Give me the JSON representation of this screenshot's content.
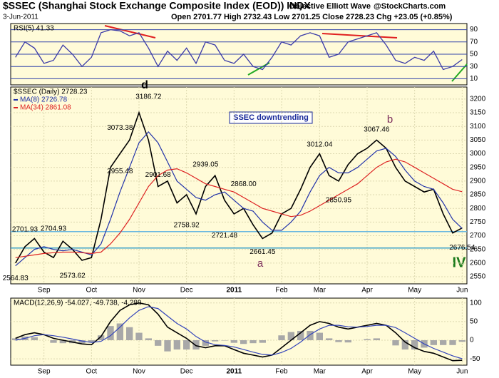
{
  "header": {
    "symbol": "$SSEC (Shanghai Stock Exchange Composite Index (EOD)) INDX",
    "date": "3-Jun-2011",
    "quote": "Open 2701.77  High 2732.43  Low 2701.25  Close 2728.23  Chg +23.05 (+0.85%)",
    "brand": "Objective Elliott Wave",
    "source": "@StockCharts.com",
    "note": "SSEC downtrending",
    "wave_d": "d",
    "wave_a": "a",
    "wave_b": "b",
    "wave_iv": "IV"
  },
  "chart_data": [
    {
      "type": "line",
      "name": "RSI(5) 41.33",
      "ylim": [
        0,
        100
      ],
      "yticks": [
        10,
        30,
        50,
        70,
        90
      ],
      "color": "#3a3aa8",
      "values": [
        45,
        70,
        60,
        35,
        40,
        65,
        50,
        30,
        45,
        85,
        90,
        88,
        80,
        85,
        60,
        30,
        55,
        40,
        60,
        35,
        70,
        65,
        40,
        35,
        50,
        30,
        25,
        45,
        70,
        65,
        80,
        85,
        80,
        45,
        50,
        70,
        75,
        80,
        85,
        65,
        40,
        35,
        45,
        40,
        55,
        25,
        30,
        41.33
      ]
    },
    {
      "type": "line",
      "name": "$SSEC (Daily) 2728.23",
      "ylim": [
        2524,
        3244
      ],
      "yticks": [
        2550,
        2600,
        2650,
        2700,
        2750,
        2800,
        2850,
        2900,
        2950,
        3000,
        3050,
        3100,
        3150,
        3200
      ],
      "categories": [
        null,
        null,
        null,
        "Sep",
        null,
        null,
        null,
        null,
        "Oct",
        null,
        null,
        null,
        null,
        "Nov",
        null,
        null,
        null,
        null,
        "Dec",
        null,
        null,
        null,
        null,
        "2011",
        null,
        null,
        null,
        null,
        "Feb",
        null,
        null,
        null,
        "Mar",
        null,
        null,
        null,
        null,
        "Apr",
        null,
        null,
        null,
        null,
        "May",
        null,
        null,
        null,
        null,
        "Jun"
      ],
      "hlines": [
        2715,
        2655
      ],
      "series": [
        {
          "name": "$SSEC (Daily) 2728.23",
          "color": "#000000",
          "values": [
            2600,
            2660,
            2690,
            2640,
            2620,
            2680,
            2650,
            2610,
            2620,
            2760,
            2950,
            3000,
            3050,
            3150,
            3050,
            2880,
            2900,
            2820,
            2850,
            2780,
            2880,
            2920,
            2830,
            2780,
            2800,
            2740,
            2690,
            2710,
            2780,
            2800,
            2870,
            2950,
            3000,
            2920,
            2900,
            2960,
            3000,
            3020,
            3050,
            3020,
            2950,
            2900,
            2880,
            2860,
            2870,
            2780,
            2710,
            2728.23
          ]
        },
        {
          "name": "MA(8) 2726.78",
          "color": "#2233aa",
          "values": [
            2590,
            2620,
            2650,
            2660,
            2650,
            2645,
            2650,
            2640,
            2630,
            2670,
            2760,
            2860,
            2950,
            3040,
            3080,
            3040,
            2970,
            2900,
            2870,
            2840,
            2830,
            2850,
            2860,
            2830,
            2800,
            2790,
            2750,
            2720,
            2720,
            2750,
            2790,
            2860,
            2920,
            2950,
            2930,
            2930,
            2950,
            2980,
            3010,
            3020,
            2990,
            2940,
            2900,
            2880,
            2870,
            2820,
            2760,
            2726.78
          ]
        },
        {
          "name": "MA(34) 2861.08",
          "color": "#dd2222",
          "values": [
            2620,
            2625,
            2630,
            2635,
            2638,
            2640,
            2640,
            2638,
            2635,
            2640,
            2670,
            2710,
            2760,
            2820,
            2880,
            2920,
            2940,
            2945,
            2930,
            2910,
            2890,
            2880,
            2870,
            2860,
            2840,
            2820,
            2800,
            2790,
            2780,
            2770,
            2775,
            2790,
            2810,
            2830,
            2850,
            2870,
            2890,
            2920,
            2950,
            2970,
            2980,
            2970,
            2950,
            2930,
            2910,
            2890,
            2870,
            2861.08
          ]
        }
      ],
      "annotations": [
        {
          "x": 0,
          "value": 2564.83,
          "label": "2564.83"
        },
        {
          "x": 1,
          "value": 2701.93,
          "label": "2701.93"
        },
        {
          "x": 4,
          "value": 2704.93,
          "label": "2704.93"
        },
        {
          "x": 6,
          "value": 2573.62,
          "label": "2573.62"
        },
        {
          "x": 11,
          "value": 3073.38,
          "label": "3073.38"
        },
        {
          "x": 11,
          "value": 2955.48,
          "label": "2955.48"
        },
        {
          "x": 14,
          "value": 3186.72,
          "label": "3186.72"
        },
        {
          "x": 15,
          "value": 2901.68,
          "label": "2901.68"
        },
        {
          "x": 18,
          "value": 2758.92,
          "label": "2758.92"
        },
        {
          "x": 20,
          "value": 2939.05,
          "label": "2939.05"
        },
        {
          "x": 22,
          "value": 2721.48,
          "label": "2721.48"
        },
        {
          "x": 24,
          "value": 2868.0,
          "label": "2868.00"
        },
        {
          "x": 26,
          "value": 2661.45,
          "label": "2661.45"
        },
        {
          "x": 32,
          "value": 3012.04,
          "label": "3012.04"
        },
        {
          "x": 34,
          "value": 2850.95,
          "label": "2850.95"
        },
        {
          "x": 38,
          "value": 3067.46,
          "label": "3067.46"
        },
        {
          "x": 47,
          "value": 2676.54,
          "label": "2676.54"
        }
      ]
    },
    {
      "type": "line",
      "name": "MACD(12,26,9) -54.027, -49.738, -4.289",
      "ylim": [
        -67,
        113
      ],
      "yticks": [
        -50,
        0,
        50,
        100
      ],
      "categories": [
        null,
        null,
        null,
        "Sep",
        null,
        null,
        null,
        null,
        "Oct",
        null,
        null,
        null,
        null,
        "Nov",
        null,
        null,
        null,
        null,
        "Dec",
        null,
        null,
        null,
        null,
        "2011",
        null,
        null,
        null,
        null,
        "Feb",
        null,
        null,
        null,
        "Mar",
        null,
        null,
        null,
        null,
        "Apr",
        null,
        null,
        null,
        null,
        "May",
        null,
        null,
        null,
        null,
        "Jun"
      ],
      "series": [
        {
          "name": "MACD",
          "color": "#000000",
          "values": [
            5,
            15,
            20,
            15,
            5,
            0,
            -5,
            -10,
            -12,
            10,
            50,
            80,
            95,
            100,
            95,
            70,
            35,
            20,
            5,
            -15,
            -20,
            -15,
            -15,
            -25,
            -35,
            -40,
            -45,
            -40,
            -20,
            0,
            20,
            40,
            50,
            45,
            35,
            30,
            35,
            40,
            45,
            40,
            20,
            -5,
            -20,
            -30,
            -35,
            -45,
            -55,
            -54.027
          ]
        },
        {
          "name": "Signal",
          "color": "#3344bb",
          "values": [
            0,
            5,
            12,
            15,
            12,
            8,
            3,
            -2,
            -6,
            -3,
            12,
            35,
            60,
            80,
            90,
            85,
            65,
            45,
            30,
            10,
            -5,
            -12,
            -14,
            -18,
            -25,
            -32,
            -38,
            -40,
            -33,
            -22,
            -5,
            15,
            30,
            40,
            40,
            36,
            35,
            37,
            40,
            40,
            34,
            20,
            5,
            -10,
            -22,
            -32,
            -42,
            -49.738
          ]
        }
      ],
      "histogram": {
        "color": "#a8a8a8",
        "values": [
          5,
          10,
          8,
          0,
          -7,
          -8,
          -8,
          -8,
          -6,
          13,
          38,
          45,
          35,
          20,
          5,
          -15,
          -30,
          -25,
          -25,
          -25,
          -15,
          -3,
          -1,
          -7,
          -10,
          -8,
          -7,
          0,
          13,
          22,
          25,
          25,
          20,
          5,
          -5,
          -6,
          0,
          3,
          5,
          0,
          -14,
          -25,
          -25,
          -20,
          -13,
          -13,
          -13,
          -4.289
        ]
      }
    }
  ]
}
